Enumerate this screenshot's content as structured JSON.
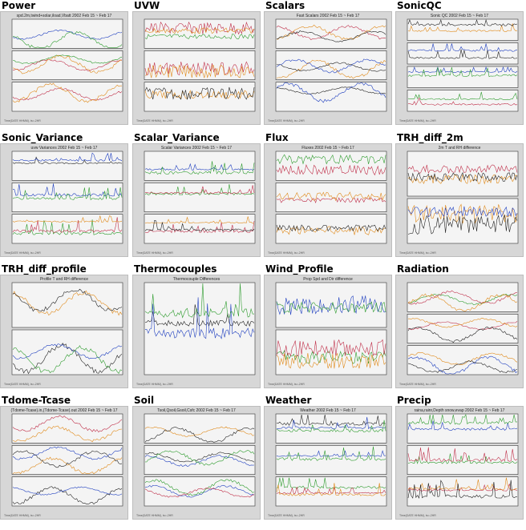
{
  "cells": [
    {
      "heading": "Power",
      "title": "spd.2m,twind+solar,iload,Vbatt 2002 Feb 15 ~ Feb 17",
      "panels": 3,
      "kind": "wave"
    },
    {
      "heading": "UVW",
      "title": "",
      "panels": 3,
      "kind": "noise"
    },
    {
      "heading": "Scalars",
      "title": "Fast Scalars 2002 Feb 15 ~ Feb 17",
      "panels": 3,
      "kind": "wave"
    },
    {
      "heading": "SonicQC",
      "title": "Sonic QC 2002 Feb 15 ~ Feb 17",
      "panels": 4,
      "kind": "spike"
    },
    {
      "heading": "Sonic_Variance",
      "title": "uvw Variances 2002 Feb 15 ~ Feb 17",
      "panels": 3,
      "kind": "spike"
    },
    {
      "heading": "Scalar_Variance",
      "title": "Scalar Variances 2002 Feb 15 ~ Feb 17",
      "panels": 3,
      "kind": "spike"
    },
    {
      "heading": "Flux",
      "title": "Fluxes 2002 Feb 15 ~ Feb 17",
      "panels": 3,
      "kind": "noise"
    },
    {
      "heading": "TRH_diff_2m",
      "title": "2m T and RH difference",
      "panels": 2,
      "kind": "noise"
    },
    {
      "heading": "TRH_diff_profile",
      "title": "Profile T and RH difference",
      "panels": 2,
      "kind": "wave"
    },
    {
      "heading": "Thermocouples",
      "title": "Thermocouple Differences",
      "panels": 1,
      "kind": "spike"
    },
    {
      "heading": "Wind_Profile",
      "title": "Prop Spd and Dir difference",
      "panels": 2,
      "kind": "noise"
    },
    {
      "heading": "Radiation",
      "title": "",
      "panels": 3,
      "kind": "wave"
    },
    {
      "heading": "Tdome-Tcase",
      "title": "(Tdome-Tcase).in,(Tdome-Tcase).out 2002 Feb 15 ~ Feb 17",
      "panels": 3,
      "kind": "wave"
    },
    {
      "heading": "Soil",
      "title": "Tsoil,Qsoil,Gsoil,Csfc 2002 Feb 15 ~ Feb 17",
      "panels": 3,
      "kind": "wave"
    },
    {
      "heading": "Weather",
      "title": "Weather 2002 Feb 15 ~ Feb 17",
      "panels": 3,
      "kind": "spike"
    },
    {
      "heading": "Precip",
      "title": "raina,rainr,Depth snow,evap 2002 Feb 15 ~ Feb 17",
      "panels": 3,
      "kind": "spike"
    }
  ],
  "footer": "Time(DATE HHMM), ts=-2HR",
  "colors": [
    "#1f3fbf",
    "#2e9c2e",
    "#c0304a",
    "#e08a1a",
    "#222222"
  ]
}
